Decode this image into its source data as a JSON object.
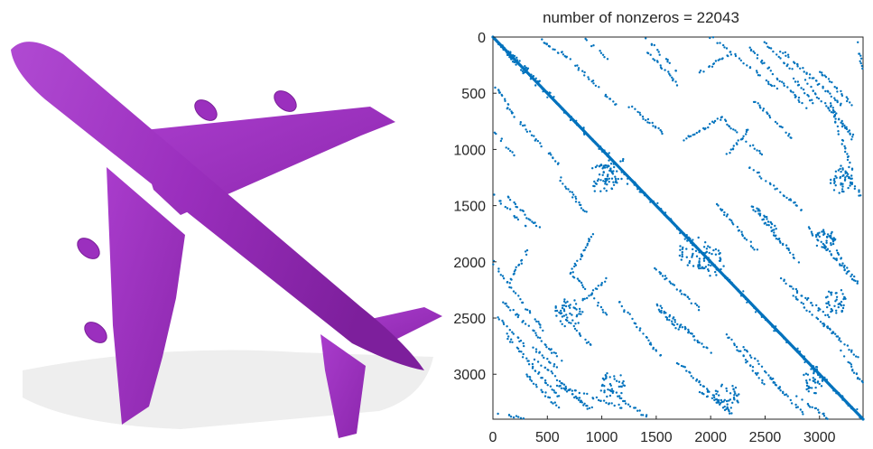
{
  "figure": {
    "left_image": "airplane-3d-mesh",
    "plane_color": "#9b2fbe",
    "marker_color": "#0072bd"
  },
  "chart_data": {
    "type": "scatter",
    "subtype": "sparsity-pattern",
    "title": "number of nonzeros = 22043",
    "nnz": 22043,
    "xlim": [
      0,
      3400
    ],
    "ylim": [
      0,
      3400
    ],
    "y_axis_reversed": true,
    "xticks": [
      "0",
      "500",
      "1000",
      "1500",
      "2000",
      "2500",
      "3000"
    ],
    "yticks": [
      "0",
      "500",
      "1000",
      "1500",
      "2000",
      "2500",
      "3000"
    ],
    "grid": false,
    "diagonal": [
      0,
      3400
    ],
    "segments": [
      [
        [
          60,
          70
        ],
        [
          380,
          420
        ]
      ],
      [
        [
          620,
          130
        ],
        [
          1150,
          620
        ]
      ],
      [
        [
          2350,
          90
        ],
        [
          2900,
          650
        ]
      ],
      [
        [
          2650,
          120
        ],
        [
          3200,
          600
        ]
      ],
      [
        [
          1260,
          620
        ],
        [
          1560,
          850
        ]
      ],
      [
        [
          2000,
          0
        ],
        [
          2600,
          450
        ]
      ],
      [
        [
          1400,
          0
        ],
        [
          1700,
          320
        ]
      ],
      [
        [
          820,
          0
        ],
        [
          1060,
          200
        ]
      ],
      [
        [
          400,
          0
        ],
        [
          620,
          150
        ]
      ],
      [
        [
          1750,
          920
        ],
        [
          2100,
          720
        ]
      ],
      [
        [
          2150,
          1050
        ],
        [
          2350,
          820
        ]
      ],
      [
        [
          2050,
          1480
        ],
        [
          2420,
          1900
        ]
      ],
      [
        [
          2550,
          1700
        ],
        [
          2800,
          2000
        ]
      ],
      [
        [
          2380,
          1500
        ],
        [
          2620,
          1800
        ]
      ],
      [
        [
          120,
          1410
        ],
        [
          420,
          1700
        ]
      ],
      [
        [
          150,
          2180
        ],
        [
          320,
          1900
        ]
      ],
      [
        [
          570,
          2400
        ],
        [
          900,
          2750
        ]
      ],
      [
        [
          1150,
          2350
        ],
        [
          1550,
          2850
        ]
      ],
      [
        [
          720,
          2100
        ],
        [
          1050,
          2480
        ]
      ],
      [
        [
          1500,
          2400
        ],
        [
          1700,
          2600
        ]
      ],
      [
        [
          50,
          2500
        ],
        [
          300,
          2750
        ]
      ],
      [
        [
          380,
          2850
        ],
        [
          880,
          3300
        ]
      ],
      [
        [
          300,
          3000
        ],
        [
          600,
          3300
        ]
      ],
      [
        [
          1700,
          2900
        ],
        [
          2200,
          3350
        ]
      ],
      [
        [
          2300,
          2750
        ],
        [
          2700,
          3200
        ]
      ],
      [
        [
          2650,
          2150
        ],
        [
          3100,
          2500
        ]
      ],
      [
        [
          3050,
          2550
        ],
        [
          3350,
          2850
        ]
      ],
      [
        [
          3200,
          1150
        ],
        [
          3400,
          1450
        ]
      ],
      [
        [
          2750,
          350
        ],
        [
          2950,
          600
        ]
      ],
      [
        [
          3100,
          600
        ],
        [
          3300,
          1200
        ]
      ],
      [
        [
          3350,
          50
        ],
        [
          3400,
          300
        ]
      ],
      [
        [
          600,
          3100
        ],
        [
          900,
          3300
        ]
      ],
      [
        [
          1900,
          3150
        ],
        [
          2200,
          3350
        ]
      ],
      [
        [
          3200,
          2800
        ],
        [
          3400,
          3100
        ]
      ]
    ],
    "clusters": [
      [
        1120,
        1200,
        160
      ],
      [
        1000,
        1260,
        130
      ],
      [
        1850,
        1920,
        150
      ],
      [
        2000,
        2000,
        130
      ],
      [
        700,
        2450,
        130
      ],
      [
        2150,
        3200,
        120
      ],
      [
        3200,
        1280,
        110
      ],
      [
        3150,
        2350,
        110
      ],
      [
        1100,
        3100,
        120
      ],
      [
        2950,
        3050,
        120
      ],
      [
        3050,
        1800,
        100
      ]
    ]
  }
}
